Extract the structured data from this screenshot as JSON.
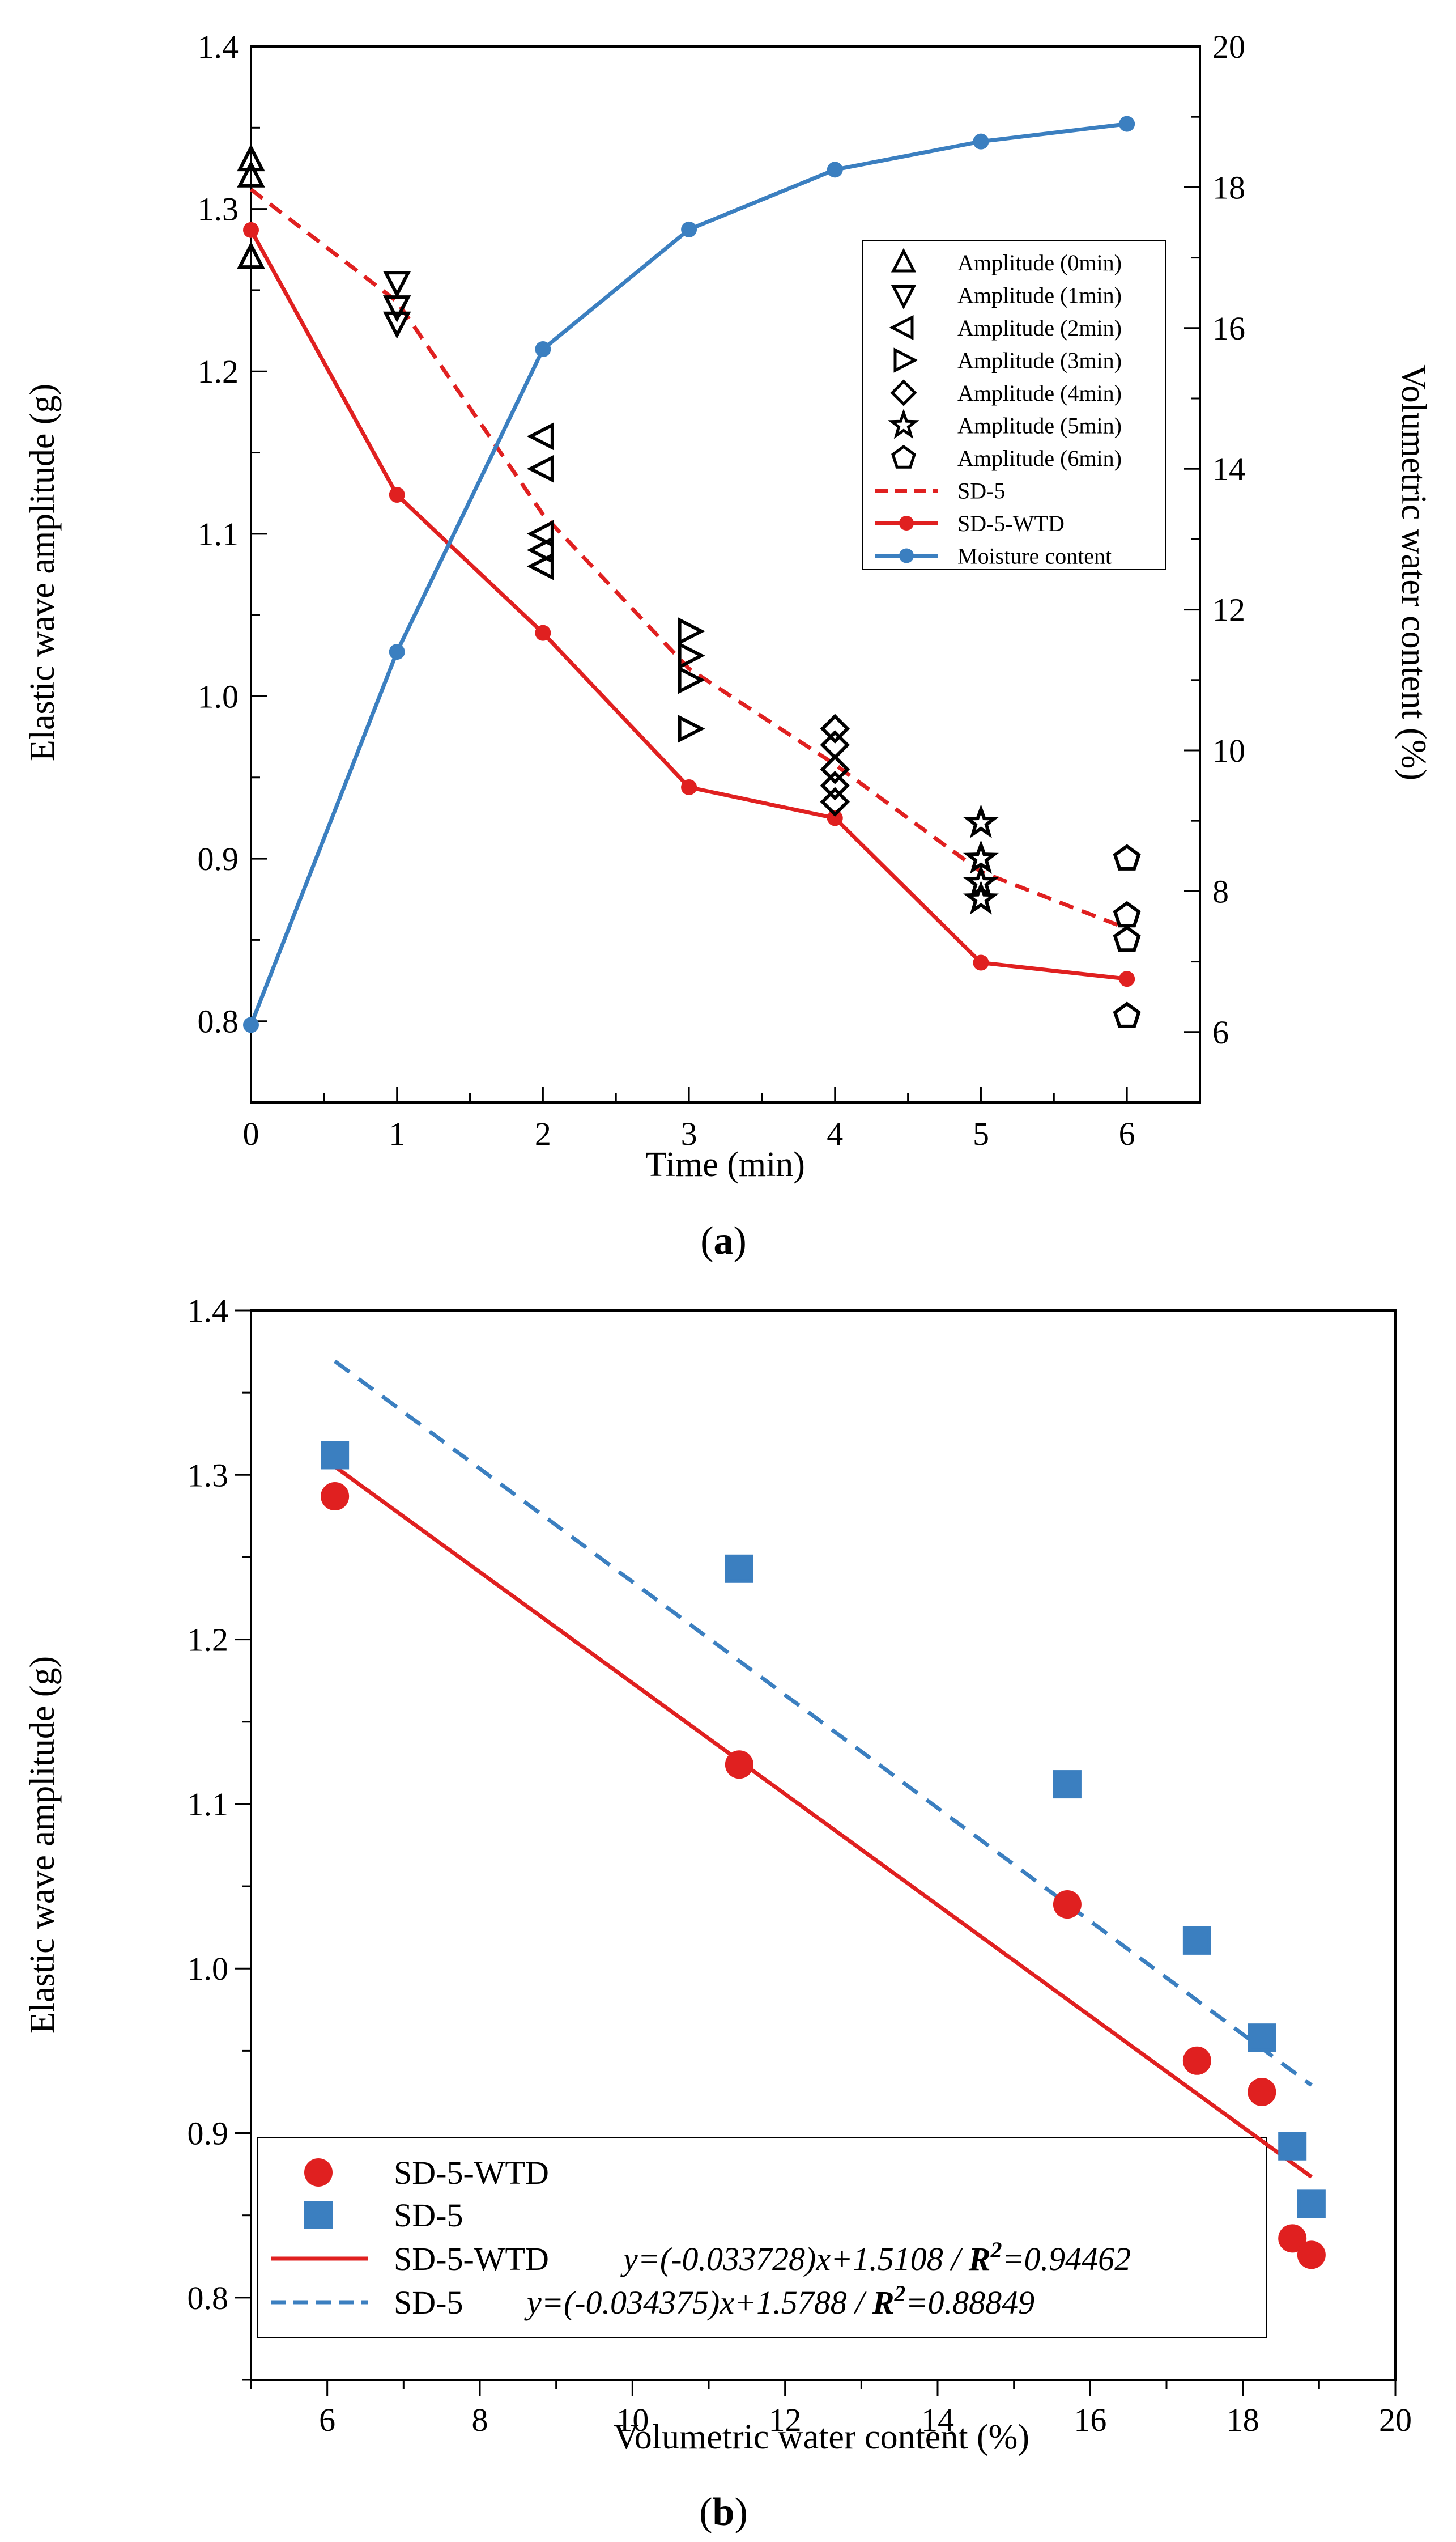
{
  "chart_data": [
    {
      "type": "line",
      "panel_label_prefix": "(",
      "panel_label_letter": "a",
      "panel_label_suffix": ")",
      "xlabel": "Time (min)",
      "ylabel_left": "Elastic wave amplitude (g)",
      "ylabel_right": "Volumetric water content (%)",
      "xlim": [
        0,
        6.5
      ],
      "ylim_left": [
        0.75,
        1.4
      ],
      "ylim_right": [
        5,
        20
      ],
      "x_ticks": [
        "0",
        "1",
        "2",
        "3",
        "4",
        "5",
        "6"
      ],
      "y_left_ticks": [
        "0.8",
        "0.9",
        "1.0",
        "1.1",
        "1.2",
        "1.3",
        "1.4"
      ],
      "y_right_ticks": [
        "6",
        "8",
        "10",
        "12",
        "14",
        "16",
        "18",
        "20"
      ],
      "colors": {
        "red": "#e02020",
        "blue": "#3b7fc0",
        "black": "#000000"
      },
      "amplitude_series": [
        {
          "name": "Amplitude (0min)",
          "marker": "triangle-up",
          "x": 0,
          "values": [
            1.33,
            1.32,
            1.27
          ]
        },
        {
          "name": "Amplitude (1min)",
          "marker": "triangle-down",
          "x": 1,
          "values": [
            1.255,
            1.24,
            1.23
          ]
        },
        {
          "name": "Amplitude (2min)",
          "marker": "triangle-left",
          "x": 2,
          "values": [
            1.16,
            1.14,
            1.1,
            1.09,
            1.08
          ]
        },
        {
          "name": "Amplitude (3min)",
          "marker": "triangle-right",
          "x": 3,
          "values": [
            1.04,
            1.025,
            1.01,
            0.98
          ]
        },
        {
          "name": "Amplitude (4min)",
          "marker": "diamond",
          "x": 4,
          "values": [
            0.98,
            0.97,
            0.955,
            0.945,
            0.935
          ]
        },
        {
          "name": "Amplitude (5min)",
          "marker": "star",
          "x": 5,
          "values": [
            0.922,
            0.9,
            0.885,
            0.875
          ]
        },
        {
          "name": "Amplitude (6min)",
          "marker": "pentagon",
          "x": 6,
          "values": [
            0.9,
            0.865,
            0.85,
            0.803
          ]
        }
      ],
      "line_series": [
        {
          "name": "SD-5",
          "style": "dashed",
          "color": "#e02020",
          "axis": "left",
          "x": [
            0,
            1,
            2,
            3,
            4,
            5,
            6
          ],
          "values": [
            1.312,
            1.243,
            1.112,
            1.017,
            0.958,
            0.892,
            0.857
          ]
        },
        {
          "name": "SD-5-WTD",
          "style": "solid-marker",
          "color": "#e02020",
          "axis": "left",
          "x": [
            0,
            1,
            2,
            3,
            4,
            5,
            6
          ],
          "values": [
            1.287,
            1.124,
            1.039,
            0.944,
            0.925,
            0.836,
            0.826
          ]
        },
        {
          "name": "Moisture content",
          "style": "solid-marker",
          "color": "#3b7fc0",
          "axis": "right",
          "x": [
            0,
            1,
            2,
            3,
            4,
            5,
            6
          ],
          "values": [
            6.1,
            11.4,
            15.7,
            17.4,
            18.25,
            18.65,
            18.9
          ]
        }
      ],
      "legend_position": "top-right"
    },
    {
      "type": "scatter",
      "panel_label_prefix": "(",
      "panel_label_letter": "b",
      "panel_label_suffix": ")",
      "xlabel": "Volumetric water content (%)",
      "ylabel": "Elastic wave amplitude (g)",
      "xlim": [
        5,
        20
      ],
      "ylim": [
        0.75,
        1.4
      ],
      "x_ticks": [
        "6",
        "8",
        "10",
        "12",
        "14",
        "16",
        "18",
        "20"
      ],
      "y_ticks": [
        "0.8",
        "0.9",
        "1.0",
        "1.1",
        "1.2",
        "1.3",
        "1.4"
      ],
      "series": [
        {
          "name": "SD-5-WTD",
          "marker": "circle",
          "color": "#e02020",
          "x": [
            6.1,
            11.4,
            15.7,
            17.4,
            18.25,
            18.65,
            18.9
          ],
          "y": [
            1.287,
            1.124,
            1.039,
            0.944,
            0.925,
            0.836,
            0.826
          ]
        },
        {
          "name": "SD-5",
          "marker": "square",
          "color": "#3b7fc0",
          "x": [
            6.1,
            11.4,
            15.7,
            17.4,
            18.25,
            18.65,
            18.9
          ],
          "y": [
            1.312,
            1.243,
            1.112,
            1.017,
            0.958,
            0.892,
            0.857
          ]
        }
      ],
      "fits": [
        {
          "name": "SD-5-WTD",
          "color": "#e02020",
          "style": "solid",
          "slope": -0.033728,
          "intercept": 1.5108,
          "x_range": [
            6.1,
            18.9
          ],
          "eq_a": "y=(-0.033728)x+1.5108 / ",
          "r2_label": "R",
          "r2_sup": "2",
          "r2_value": "=0.94462"
        },
        {
          "name": "SD-5",
          "color": "#3b7fc0",
          "style": "dashed",
          "slope": -0.034375,
          "intercept": 1.5788,
          "x_range": [
            6.1,
            18.9
          ],
          "eq_a": "y=(-0.034375)x+1.5788 / ",
          "r2_label": "R",
          "r2_sup": "2",
          "r2_value": "=0.88849"
        }
      ],
      "legend_position": "bottom-left"
    }
  ]
}
